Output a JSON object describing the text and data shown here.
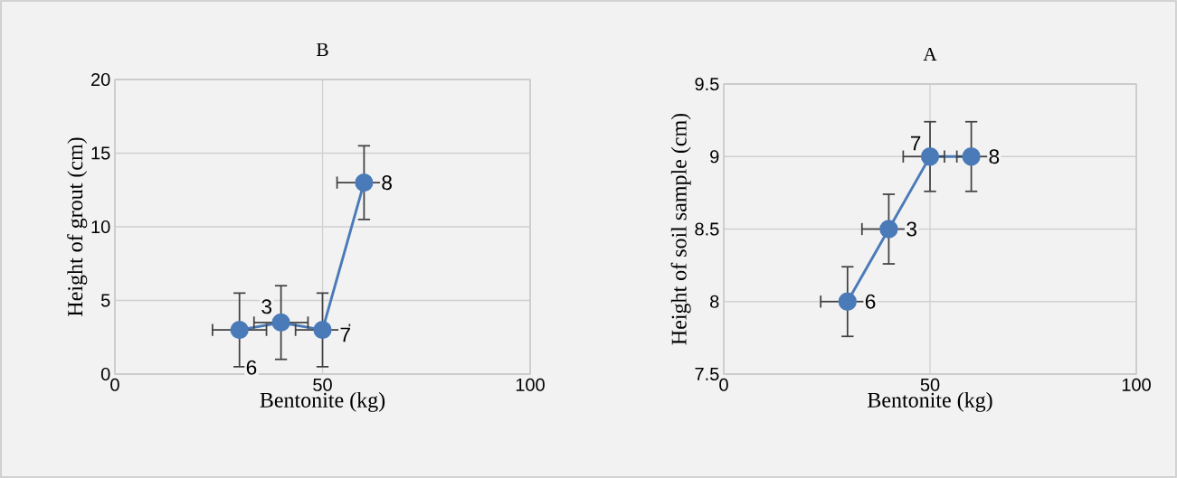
{
  "chart_data": [
    {
      "type": "line",
      "title": "B",
      "xlabel": "Bentonite (kg)",
      "ylabel": "Height of grout (cm)",
      "x": [
        30,
        40,
        50,
        60
      ],
      "values": [
        3,
        3.5,
        3,
        13
      ],
      "errors": [
        2.5,
        2.5,
        2.5,
        2.5
      ],
      "xerrors": [
        6.5,
        6.5,
        6.5,
        6.5
      ],
      "color": "#4a7ab8",
      "marker": "circle",
      "line_style": "solid",
      "grid": true,
      "xlim": [
        0,
        100
      ],
      "xticks": [
        0,
        50,
        100
      ],
      "ylim": [
        0,
        20
      ],
      "yticks": [
        0,
        5,
        10,
        15,
        20
      ],
      "annotations": [
        {
          "text": "6",
          "x": 30,
          "y": 3
        },
        {
          "text": "3",
          "x": 40,
          "y": 3.5
        },
        {
          "text": "7",
          "x": 50,
          "y": 3
        },
        {
          "text": "8",
          "x": 60,
          "y": 13
        }
      ]
    },
    {
      "type": "line",
      "title": "A",
      "xlabel": "Bentonite (kg)",
      "ylabel": "Height of soil sample (cm)",
      "x": [
        30,
        40,
        50,
        60
      ],
      "values": [
        8,
        8.5,
        9,
        9
      ],
      "errors": [
        0.24,
        0.24,
        0.24,
        0.24
      ],
      "xerrors": [
        6.5,
        6.5,
        [
          43.5,
          53.5
        ],
        [
          56.5,
          66.5
        ]
      ],
      "color": "#4a7ab8",
      "marker": "circle",
      "line_style": "solid",
      "grid": true,
      "xlim": [
        0,
        100
      ],
      "xticks": [
        0,
        50,
        100
      ],
      "ylim": [
        7.5,
        9.5
      ],
      "yticks": [
        7.5,
        8,
        8.5,
        9,
        9.5
      ],
      "annotations": [
        {
          "text": "6",
          "x": 30,
          "y": 8
        },
        {
          "text": "3",
          "x": 40,
          "y": 8.5
        },
        {
          "text": "7",
          "x": 50,
          "y": 9
        },
        {
          "text": "8",
          "x": 60,
          "y": 9
        }
      ]
    }
  ]
}
